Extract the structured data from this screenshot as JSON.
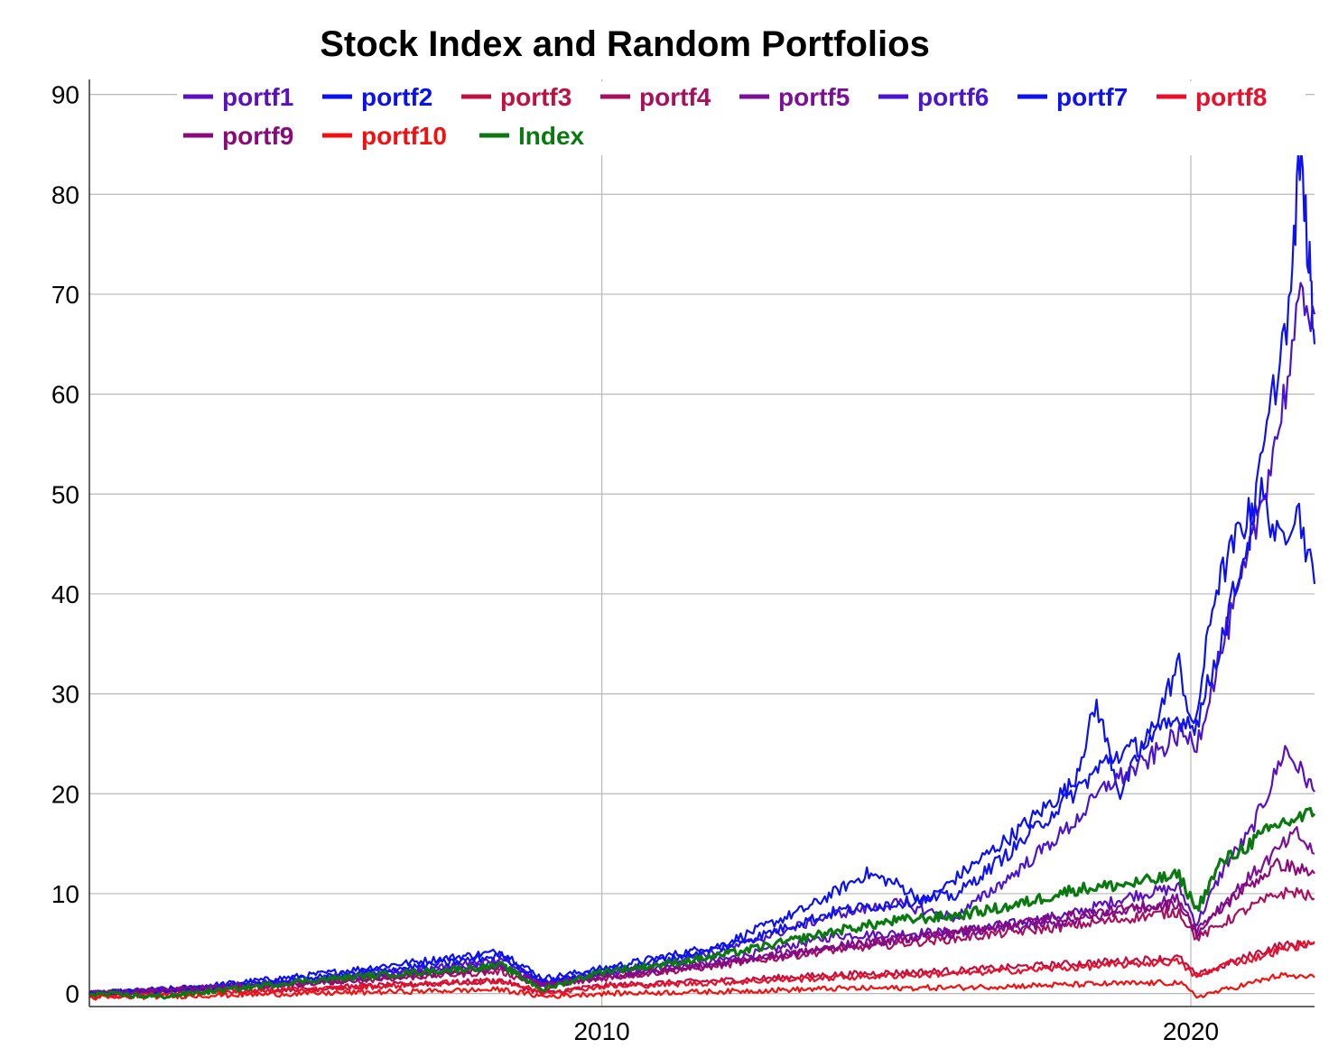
{
  "chart_data": {
    "type": "line",
    "title": "Stock Index and Random Portfolios",
    "xlabel": "",
    "ylabel": "",
    "x_range": [
      2001.3,
      2022.1
    ],
    "ylim": [
      -1.3,
      91.5
    ],
    "y_ticks": [
      0,
      10,
      20,
      30,
      40,
      50,
      60,
      70,
      80,
      90
    ],
    "y_tick_labels": [
      "0",
      "10",
      "20",
      "30",
      "40",
      "50",
      "60",
      "70",
      "80",
      "90"
    ],
    "x_ticks": [
      2010,
      2020
    ],
    "x_tick_labels": [
      "2010",
      "2020"
    ],
    "grid": true,
    "legend_position": "top",
    "series": [
      {
        "name": "portf1",
        "color": "#5b0fc0",
        "x": [
          2001.3,
          2003,
          2005,
          2007,
          2008.3,
          2009,
          2010,
          2012,
          2014,
          2016,
          2017,
          2018,
          2019,
          2019.8,
          2020.1,
          2020.6,
          2021,
          2021.3,
          2021.6,
          2021.9,
          2022.1
        ],
        "y": [
          0,
          0.3,
          1.2,
          2.3,
          3.5,
          0.9,
          1.9,
          3.3,
          5.8,
          6.2,
          7.0,
          8.0,
          9.8,
          10.6,
          7.0,
          13.0,
          16.0,
          20.0,
          24.5,
          22.0,
          20.2
        ]
      },
      {
        "name": "portf2",
        "color": "#0a10f2",
        "x": [
          2001.3,
          2003,
          2005,
          2007,
          2008.3,
          2009,
          2010,
          2012,
          2013.5,
          2014.5,
          2015,
          2015.5,
          2016,
          2017,
          2018,
          2018.4,
          2018.8,
          2019.3,
          2019.8,
          2020.05,
          2020.4,
          2020.8,
          2021.2,
          2021.5,
          2021.8,
          2022.1
        ],
        "y": [
          0,
          0.6,
          1.8,
          3.3,
          4.2,
          1.5,
          2.5,
          4.8,
          8.6,
          12.0,
          11.0,
          9.2,
          11.5,
          16.0,
          21.0,
          29.0,
          20.0,
          26.0,
          33.0,
          26.0,
          40.0,
          46.0,
          50.0,
          45.0,
          49.0,
          41.0
        ]
      },
      {
        "name": "portf3",
        "color": "#c0103f",
        "x": [
          2001.3,
          2005,
          2008.3,
          2009,
          2010,
          2012,
          2014,
          2016,
          2018,
          2019.8,
          2020.1,
          2021,
          2021.5,
          2022.1
        ],
        "y": [
          0,
          0.5,
          1.3,
          0,
          0.8,
          1.3,
          1.9,
          2.3,
          3.0,
          3.6,
          1.8,
          3.8,
          4.8,
          5.0
        ]
      },
      {
        "name": "portf4",
        "color": "#a8105e",
        "x": [
          2001.3,
          2005,
          2008.3,
          2009,
          2010,
          2012,
          2014,
          2016,
          2018,
          2019.8,
          2020.1,
          2021,
          2021.5,
          2021.8,
          2022.1
        ],
        "y": [
          0,
          1.0,
          2.2,
          0.6,
          1.5,
          2.8,
          4.4,
          5.5,
          6.8,
          8.2,
          5.5,
          8.6,
          10.0,
          10.2,
          9.5
        ]
      },
      {
        "name": "portf5",
        "color": "#7c0f98",
        "x": [
          2001.3,
          2005,
          2008.3,
          2009,
          2010,
          2012,
          2014,
          2016,
          2018,
          2019.8,
          2020.1,
          2020.8,
          2021.5,
          2021.8,
          2022.1
        ],
        "y": [
          0,
          1.1,
          2.7,
          0.9,
          1.7,
          3.0,
          4.8,
          6.0,
          7.2,
          9.5,
          6.4,
          10.5,
          14.5,
          16.0,
          14.0
        ]
      },
      {
        "name": "portf6",
        "color": "#4a14d0",
        "x": [
          2001.3,
          2003,
          2005,
          2007,
          2008.3,
          2009,
          2010,
          2012,
          2014,
          2015,
          2016,
          2017,
          2018,
          2018.6,
          2019.2,
          2019.8,
          2020.1,
          2020.5,
          2021,
          2021.5,
          2021.9,
          2022.1
        ],
        "y": [
          0,
          0.5,
          1.4,
          2.5,
          3.0,
          1.0,
          2.0,
          4.2,
          8.0,
          9.0,
          7.6,
          12.0,
          17.0,
          21.0,
          23.0,
          26.0,
          25.0,
          34.0,
          44.0,
          57.0,
          70.0,
          68.0
        ]
      },
      {
        "name": "portf7",
        "color": "#0f12f0",
        "x": [
          2001.3,
          2003,
          2005,
          2007,
          2008.3,
          2009,
          2010,
          2012,
          2014,
          2016,
          2017,
          2018,
          2018.6,
          2019.2,
          2019.8,
          2020.1,
          2020.5,
          2021,
          2021.4,
          2021.7,
          2021.85,
          2022.0,
          2022.1
        ],
        "y": [
          0,
          0.4,
          1.5,
          2.8,
          3.8,
          1.2,
          2.2,
          4.5,
          8.3,
          9.8,
          14.5,
          20.0,
          23.5,
          25.0,
          27.5,
          27.0,
          35.0,
          46.0,
          60.0,
          70.0,
          84.0,
          74.0,
          65.0
        ]
      },
      {
        "name": "portf8",
        "color": "#e8102a",
        "x": [
          2001.3,
          2005,
          2008.3,
          2009,
          2010,
          2012,
          2014,
          2016,
          2018,
          2019.8,
          2020.1,
          2020.6,
          2021,
          2021.5,
          2022.1
        ],
        "y": [
          -0.3,
          0.4,
          1.3,
          0.1,
          0.7,
          1.1,
          1.6,
          2.0,
          2.6,
          3.2,
          1.6,
          3.0,
          3.4,
          4.3,
          5.2
        ]
      },
      {
        "name": "portf9",
        "color": "#8a0a7c",
        "x": [
          2001.3,
          2005,
          2008.3,
          2009,
          2010,
          2012,
          2014,
          2016,
          2018,
          2019.8,
          2020.1,
          2020.8,
          2021.5,
          2022.1
        ],
        "y": [
          0,
          1.0,
          2.5,
          0.8,
          1.6,
          3.0,
          4.6,
          6.2,
          7.8,
          9.0,
          6.0,
          10.0,
          13.0,
          12.0
        ]
      },
      {
        "name": "portf10",
        "color": "#f21010",
        "x": [
          2001.3,
          2005,
          2008.3,
          2009,
          2010,
          2012,
          2014,
          2016,
          2018,
          2019.8,
          2020.1,
          2021,
          2021.5,
          2022.1
        ],
        "y": [
          -0.4,
          0,
          0.4,
          -0.3,
          0,
          0.2,
          0.5,
          0.6,
          0.9,
          1.1,
          -0.3,
          1.0,
          1.8,
          1.6
        ]
      },
      {
        "name": "Index",
        "color": "#0a7a10",
        "x": [
          2001.3,
          2002.5,
          2003.5,
          2005,
          2007,
          2008.3,
          2009,
          2010,
          2011,
          2012,
          2013,
          2014,
          2015,
          2016,
          2017,
          2018,
          2019,
          2019.8,
          2020.1,
          2020.5,
          2021,
          2021.5,
          2022.1
        ],
        "y": [
          0,
          -0.3,
          0.3,
          1.3,
          2.2,
          2.8,
          0.4,
          2.2,
          2.9,
          3.8,
          5.0,
          6.3,
          7.3,
          7.8,
          8.8,
          10.4,
          11.0,
          11.8,
          8.4,
          13.0,
          15.0,
          17.0,
          18.0
        ]
      }
    ]
  }
}
